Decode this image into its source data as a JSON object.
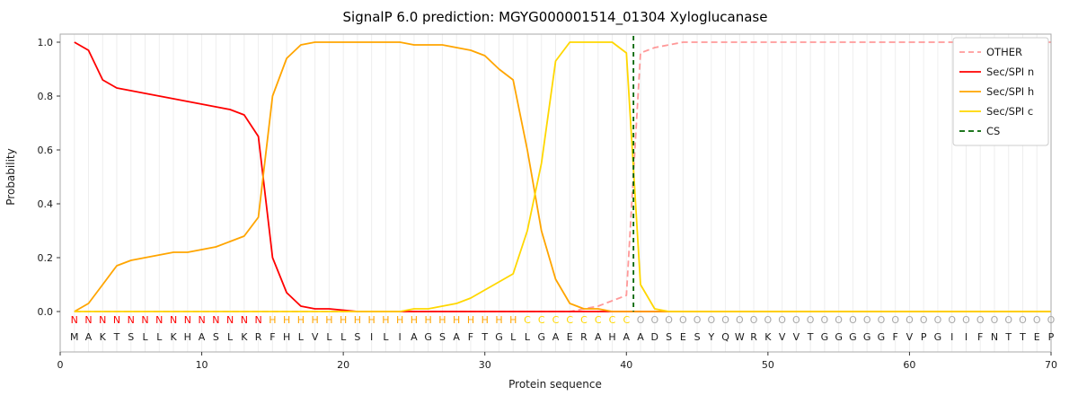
{
  "title": "SignalP 6.0 prediction: MGYG000001514_01304 Xyloglucanase",
  "chart_data": {
    "type": "line",
    "title": "SignalP 6.0 prediction: MGYG000001514_01304 Xyloglucanase",
    "xlabel": "Protein sequence",
    "ylabel": "Probability",
    "xlim": [
      0,
      70
    ],
    "ylim": [
      -0.15,
      1.03
    ],
    "xticks": [
      0,
      10,
      20,
      30,
      40,
      50,
      60,
      70
    ],
    "yticks": [
      "0.0",
      "0.2",
      "0.4",
      "0.6",
      "0.8",
      "1.0"
    ],
    "grid": "vertical line per residue, light gray",
    "legend_position": "upper right",
    "colors": {
      "grid": "#eeeeee",
      "frame": "#aaaaaa",
      "tick": "#333333",
      "text": "#1a1a1a"
    },
    "x_start": 1,
    "series": [
      {
        "name": "OTHER",
        "color": "#ff9999",
        "dashed": true,
        "values": [
          0,
          0,
          0,
          0,
          0,
          0,
          0,
          0,
          0,
          0,
          0,
          0,
          0,
          0,
          0,
          0,
          0,
          0,
          0,
          0,
          0,
          0,
          0,
          0,
          0,
          0,
          0,
          0,
          0,
          0,
          0,
          0,
          0,
          0,
          0,
          0,
          0.01,
          0.02,
          0.04,
          0.06,
          0.96,
          0.98,
          0.99,
          1,
          1,
          1,
          1,
          1,
          1,
          1,
          1,
          1,
          1,
          1,
          1,
          1,
          1,
          1,
          1,
          1,
          1,
          1,
          1,
          1,
          1,
          1,
          1,
          1,
          1,
          1
        ]
      },
      {
        "name": "Sec/SPI n",
        "color": "#ff0000",
        "dashed": false,
        "values": [
          1,
          0.97,
          0.86,
          0.83,
          0.82,
          0.81,
          0.8,
          0.79,
          0.78,
          0.77,
          0.76,
          0.75,
          0.73,
          0.65,
          0.2,
          0.07,
          0.02,
          0.01,
          0.01,
          0.005,
          0,
          0,
          0,
          0,
          0,
          0,
          0,
          0,
          0,
          0,
          0,
          0,
          0,
          0,
          0,
          0,
          0,
          0,
          0,
          0,
          0,
          0,
          0,
          0,
          0,
          0,
          0,
          0,
          0,
          0,
          0,
          0,
          0,
          0,
          0,
          0,
          0,
          0,
          0,
          0,
          0,
          0,
          0,
          0,
          0,
          0,
          0,
          0,
          0,
          0
        ]
      },
      {
        "name": "Sec/SPI h",
        "color": "#ffa500",
        "dashed": false,
        "values": [
          0,
          0.03,
          0.1,
          0.17,
          0.19,
          0.2,
          0.21,
          0.22,
          0.22,
          0.23,
          0.24,
          0.26,
          0.28,
          0.35,
          0.8,
          0.94,
          0.99,
          1,
          1,
          1,
          1,
          1,
          1,
          1,
          0.99,
          0.99,
          0.99,
          0.98,
          0.97,
          0.95,
          0.9,
          0.86,
          0.6,
          0.3,
          0.12,
          0.03,
          0.01,
          0.01,
          0,
          0,
          0,
          0,
          0,
          0,
          0,
          0,
          0,
          0,
          0,
          0,
          0,
          0,
          0,
          0,
          0,
          0,
          0,
          0,
          0,
          0,
          0,
          0,
          0,
          0,
          0,
          0,
          0,
          0,
          0,
          0
        ]
      },
      {
        "name": "Sec/SPI c",
        "color": "#ffd700",
        "dashed": false,
        "values": [
          0,
          0,
          0,
          0,
          0,
          0,
          0,
          0,
          0,
          0,
          0,
          0,
          0,
          0,
          0,
          0,
          0,
          0,
          0,
          0,
          0,
          0,
          0,
          0,
          0.01,
          0.01,
          0.02,
          0.03,
          0.05,
          0.08,
          0.11,
          0.14,
          0.3,
          0.55,
          0.93,
          1,
          1,
          1,
          1,
          0.96,
          0.1,
          0.01,
          0,
          0,
          0,
          0,
          0,
          0,
          0,
          0,
          0,
          0,
          0,
          0,
          0,
          0,
          0,
          0,
          0,
          0,
          0,
          0,
          0,
          0,
          0,
          0,
          0,
          0,
          0,
          0
        ]
      }
    ],
    "cs_marker": {
      "label": "CS",
      "x": 40.5,
      "color": "#006400",
      "style": "dashed"
    },
    "sequence": "MAKTSLLKHASLKRFHLVLLSILIAGSAFTGLLGAERAHAADSESYQWRKVVTGGGGGFVPGIIFNTTEP",
    "region_labels": "NNNNNNNNNNNNNNHHHHHHHHHHHHHHHHHHCCCCCCCCOOOOOOOOOOOOOOOOOOOOOOOOOOOOOO",
    "region_colors": {
      "N": "#ff0000",
      "H": "#ffa500",
      "C": "#ffd700",
      "O": "#a8a8a8"
    },
    "legend_entries": [
      "OTHER",
      "Sec/SPI n",
      "Sec/SPI h",
      "Sec/SPI c",
      "CS"
    ]
  }
}
